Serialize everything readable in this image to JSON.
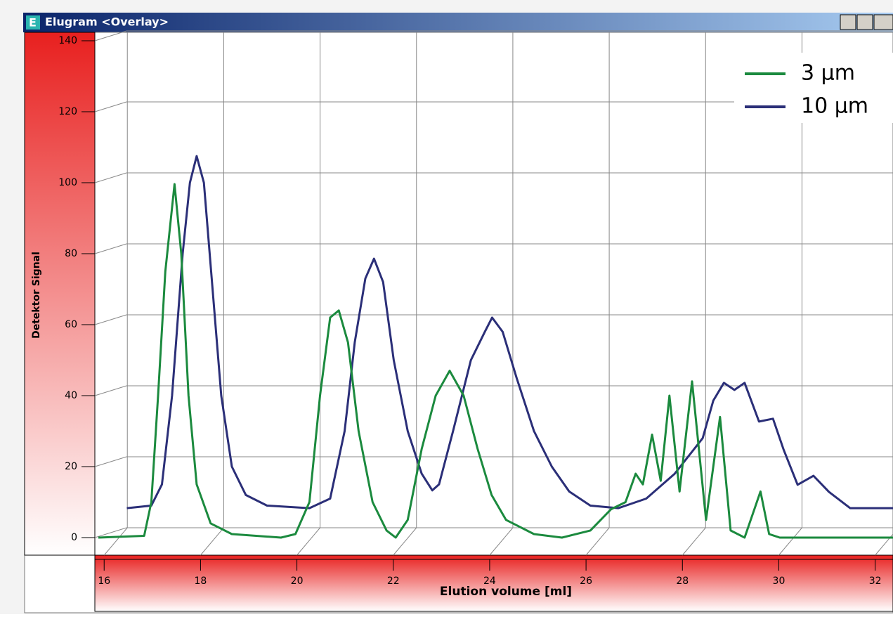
{
  "window_title": "Elugram <Overlay>",
  "chart_data": {
    "type": "line",
    "x_label": "Elution volume [ml]",
    "y_label": "Detektor Signal",
    "xlim": [
      15.88,
      32.37
    ],
    "ylim": [
      0,
      140
    ],
    "xticks": [
      16,
      18,
      20,
      22,
      24,
      26,
      28,
      30,
      32
    ],
    "yticks": [
      0,
      20,
      40,
      60,
      80,
      100,
      120,
      140
    ],
    "grid": true,
    "legend": "upper right",
    "series": [
      {
        "name": "3 µm",
        "color": "#1b8a3e",
        "x": [
          15.88,
          16.83,
          16.98,
          17.12,
          17.27,
          17.46,
          17.6,
          17.75,
          17.92,
          18.21,
          18.65,
          19.67,
          19.97,
          20.26,
          20.48,
          20.69,
          20.87,
          21.06,
          21.28,
          21.57,
          21.86,
          22.05,
          22.3,
          22.59,
          22.88,
          23.17,
          23.46,
          23.75,
          24.04,
          24.34,
          24.92,
          25.5,
          26.09,
          26.52,
          26.82,
          27.03,
          27.18,
          27.37,
          27.55,
          27.73,
          27.94,
          28.2,
          28.49,
          28.78,
          29.0,
          29.29,
          29.62,
          29.8,
          30.02,
          32.37
        ],
        "values": [
          0,
          0.5,
          10,
          40,
          75,
          99.6,
          80,
          40,
          15,
          4,
          1,
          0,
          1,
          10,
          40,
          62,
          64,
          55,
          30,
          10,
          2,
          0,
          5,
          25,
          40,
          47,
          40,
          25,
          12,
          5,
          1,
          0,
          2,
          8,
          10,
          18,
          15,
          29,
          16,
          40,
          13,
          44,
          5,
          34,
          2,
          0,
          13,
          1,
          0,
          0
        ]
      },
      {
        "name": "10 µm",
        "color": "#2b2f78",
        "x": [
          16.47,
          16.98,
          17.2,
          17.41,
          17.63,
          17.78,
          17.92,
          18.07,
          18.22,
          18.43,
          18.65,
          18.94,
          19.38,
          20.26,
          20.69,
          20.99,
          21.2,
          21.42,
          21.6,
          21.79,
          22.01,
          22.3,
          22.59,
          22.81,
          22.95,
          23.24,
          23.61,
          23.9,
          24.05,
          24.27,
          24.56,
          24.92,
          25.29,
          25.65,
          26.09,
          26.67,
          27.25,
          27.84,
          28.42,
          28.64,
          28.86,
          29.08,
          29.29,
          29.59,
          29.88,
          30.1,
          30.39,
          30.72,
          31.04,
          31.48,
          32.37
        ],
        "values": [
          8.3,
          9,
          15,
          40,
          80,
          100,
          107.5,
          100,
          75,
          40,
          20,
          12,
          9,
          8.3,
          11,
          30,
          55,
          73,
          78.6,
          72,
          50,
          30,
          18,
          13.3,
          15,
          30,
          50,
          58,
          62,
          58,
          45,
          30,
          20,
          13,
          9,
          8.3,
          11,
          18,
          28,
          38.6,
          43.6,
          41.6,
          43.6,
          32.7,
          33.5,
          24.8,
          14.9,
          17.4,
          12.9,
          8.3,
          8.3
        ]
      }
    ]
  }
}
